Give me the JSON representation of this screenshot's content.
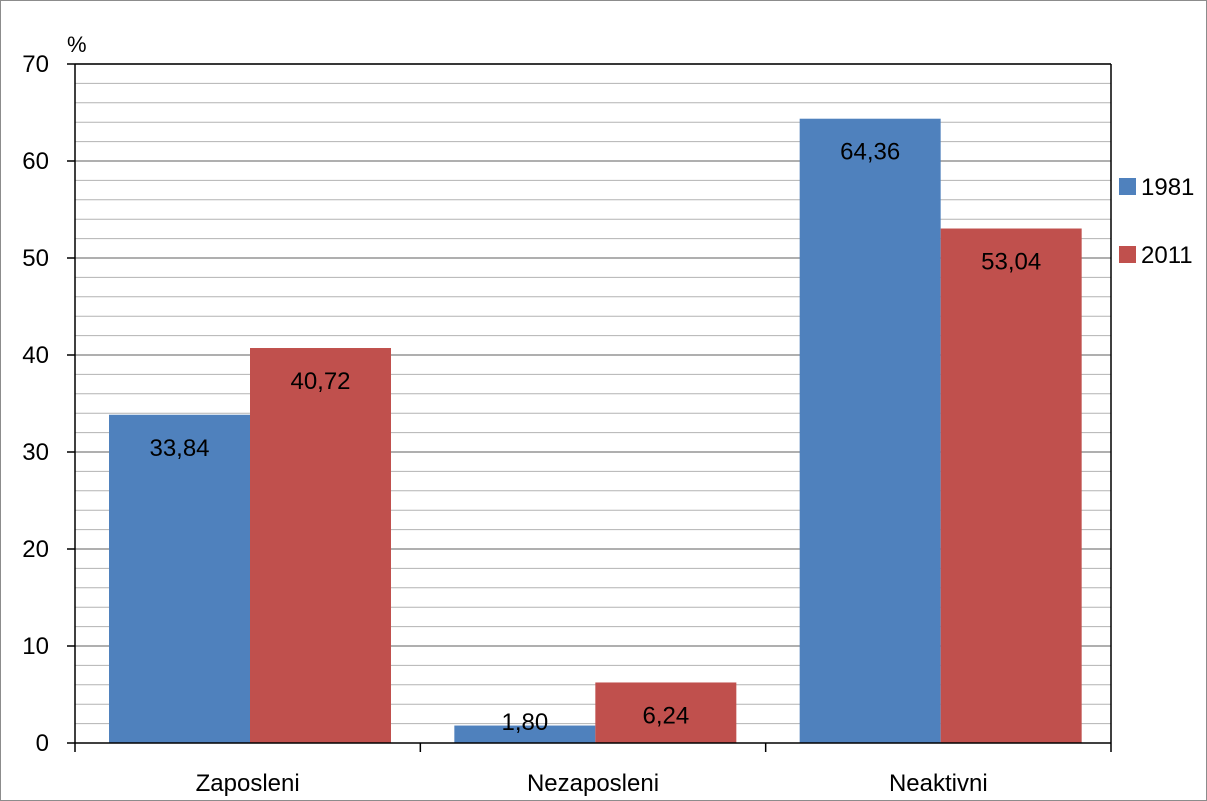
{
  "chart_data": {
    "type": "bar",
    "categories": [
      "Zaposleni",
      "Nezaposleni",
      "Neaktivni"
    ],
    "series": [
      {
        "name": "1981",
        "color": "#4f81bd",
        "values": [
          33.84,
          1.8,
          64.36
        ],
        "labels": [
          "33,84",
          "1,80",
          "64,36"
        ]
      },
      {
        "name": "2011",
        "color": "#c0504d",
        "values": [
          40.72,
          6.24,
          53.04
        ],
        "labels": [
          "40,72",
          "6,24",
          "53,04"
        ]
      }
    ],
    "ylabel": "%",
    "ylim": [
      0,
      70
    ],
    "yticks": [
      0,
      10,
      20,
      30,
      40,
      50,
      60,
      70
    ],
    "minor_gridline_step": 2,
    "grid": true,
    "legend_position": "right"
  }
}
